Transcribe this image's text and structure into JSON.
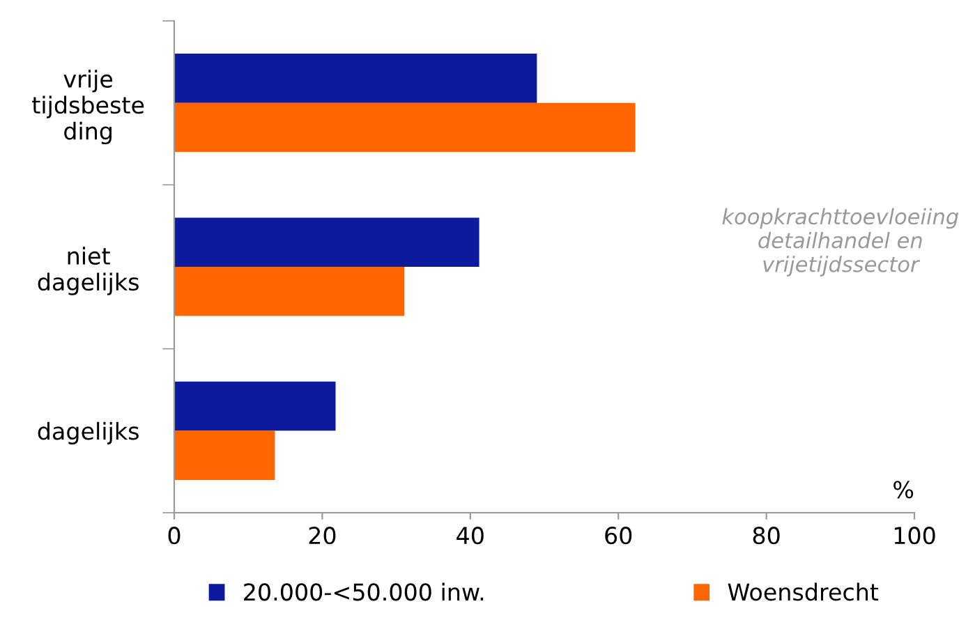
{
  "chart_data": {
    "type": "bar",
    "orientation": "horizontal",
    "categories": [
      "vrije\ntijdsbeste\nding",
      "niet\ndagelijks",
      "dagelijks"
    ],
    "series": [
      {
        "name": "20.000-<50.000 inw.",
        "color": "#0c1a9e",
        "values": [
          49,
          41.2,
          21.8
        ]
      },
      {
        "name": "Woensdrecht",
        "color": "#ff6600",
        "values": [
          62.3,
          31.1,
          13.6
        ]
      }
    ],
    "xlabel": "%",
    "xlim": [
      0,
      100
    ],
    "xticks": [
      0,
      20,
      40,
      60,
      80,
      100
    ],
    "annotations": [
      "koopkrachttoevloeiing\ndetailhandel en\nvrijetijdssector"
    ],
    "grid": false,
    "legend": "bottom"
  }
}
